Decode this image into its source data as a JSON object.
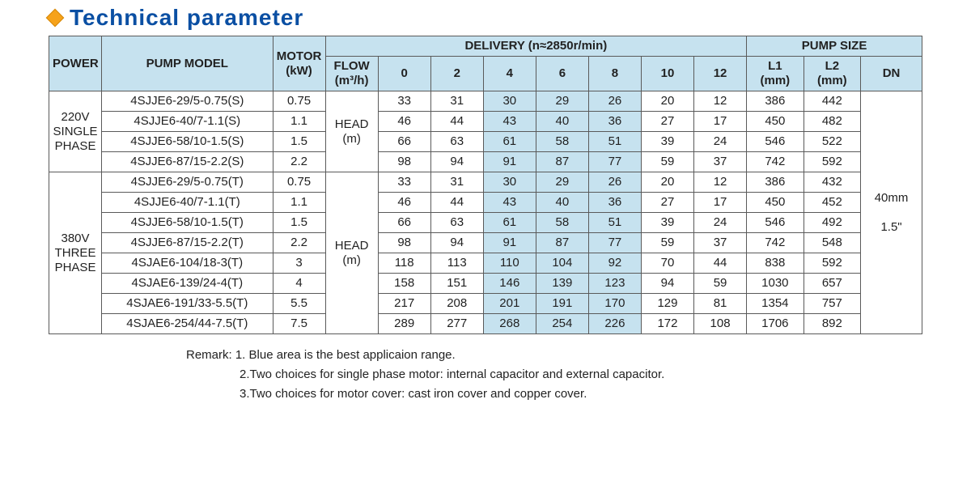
{
  "title": "Technical parameter",
  "headers": {
    "power": "POWER",
    "pump_model": "PUMP MODEL",
    "motor_kw": "MOTOR (kW)",
    "delivery": "DELIVERY  (n≈2850r/min)",
    "pump_size": "PUMP SIZE",
    "flow": "FLOW (m³/h)",
    "l1": "L1 (mm)",
    "l2": "L2 (mm)",
    "dn": "DN"
  },
  "flow_cols": [
    "0",
    "2",
    "4",
    "6",
    "8",
    "10",
    "12"
  ],
  "groups": [
    {
      "power_label": "220V\nSINGLE\nPHASE",
      "head_label": "HEAD\n(m)",
      "rows": [
        {
          "model": "4SJJE6-29/5-0.75(S)",
          "kw": "0.75",
          "head": [
            "33",
            "31",
            "30",
            "29",
            "26",
            "20",
            "12"
          ],
          "hl": [
            false,
            false,
            true,
            true,
            true,
            false,
            false
          ],
          "l1": "386",
          "l2": "442"
        },
        {
          "model": "4SJJE6-40/7-1.1(S)",
          "kw": "1.1",
          "head": [
            "46",
            "44",
            "43",
            "40",
            "36",
            "27",
            "17"
          ],
          "hl": [
            false,
            false,
            true,
            true,
            true,
            false,
            false
          ],
          "l1": "450",
          "l2": "482"
        },
        {
          "model": "4SJJE6-58/10-1.5(S)",
          "kw": "1.5",
          "head": [
            "66",
            "63",
            "61",
            "58",
            "51",
            "39",
            "24"
          ],
          "hl": [
            false,
            false,
            true,
            true,
            true,
            false,
            false
          ],
          "l1": "546",
          "l2": "522"
        },
        {
          "model": "4SJJE6-87/15-2.2(S)",
          "kw": "2.2",
          "head": [
            "98",
            "94",
            "91",
            "87",
            "77",
            "59",
            "37"
          ],
          "hl": [
            false,
            false,
            true,
            true,
            true,
            false,
            false
          ],
          "l1": "742",
          "l2": "592"
        }
      ]
    },
    {
      "power_label": "380V\nTHREE\nPHASE",
      "head_label": "HEAD\n(m)",
      "rows": [
        {
          "model": "4SJJE6-29/5-0.75(T)",
          "kw": "0.75",
          "head": [
            "33",
            "31",
            "30",
            "29",
            "26",
            "20",
            "12"
          ],
          "hl": [
            false,
            false,
            true,
            true,
            true,
            false,
            false
          ],
          "l1": "386",
          "l2": "432"
        },
        {
          "model": "4SJJE6-40/7-1.1(T)",
          "kw": "1.1",
          "head": [
            "46",
            "44",
            "43",
            "40",
            "36",
            "27",
            "17"
          ],
          "hl": [
            false,
            false,
            true,
            true,
            true,
            false,
            false
          ],
          "l1": "450",
          "l2": "452"
        },
        {
          "model": "4SJJE6-58/10-1.5(T)",
          "kw": "1.5",
          "head": [
            "66",
            "63",
            "61",
            "58",
            "51",
            "39",
            "24"
          ],
          "hl": [
            false,
            false,
            true,
            true,
            true,
            false,
            false
          ],
          "l1": "546",
          "l2": "492"
        },
        {
          "model": "4SJJE6-87/15-2.2(T)",
          "kw": "2.2",
          "head": [
            "98",
            "94",
            "91",
            "87",
            "77",
            "59",
            "37"
          ],
          "hl": [
            false,
            false,
            true,
            true,
            true,
            false,
            false
          ],
          "l1": "742",
          "l2": "548"
        },
        {
          "model": "4SJAE6-104/18-3(T)",
          "kw": "3",
          "head": [
            "118",
            "113",
            "110",
            "104",
            "92",
            "70",
            "44"
          ],
          "hl": [
            false,
            false,
            true,
            true,
            true,
            false,
            false
          ],
          "l1": "838",
          "l2": "592"
        },
        {
          "model": "4SJAE6-139/24-4(T)",
          "kw": "4",
          "head": [
            "158",
            "151",
            "146",
            "139",
            "123",
            "94",
            "59"
          ],
          "hl": [
            false,
            false,
            true,
            true,
            true,
            false,
            false
          ],
          "l1": "1030",
          "l2": "657"
        },
        {
          "model": "4SJAE6-191/33-5.5(T)",
          "kw": "5.5",
          "head": [
            "217",
            "208",
            "201",
            "191",
            "170",
            "129",
            "81"
          ],
          "hl": [
            false,
            false,
            true,
            true,
            true,
            false,
            false
          ],
          "l1": "1354",
          "l2": "757"
        },
        {
          "model": "4SJAE6-254/44-7.5(T)",
          "kw": "7.5",
          "head": [
            "289",
            "277",
            "268",
            "254",
            "226",
            "172",
            "108"
          ],
          "hl": [
            false,
            false,
            true,
            true,
            true,
            false,
            false
          ],
          "l1": "1706",
          "l2": "892"
        }
      ]
    }
  ],
  "dn": "40mm\n\n1.5\"",
  "remarks": [
    "Remark: 1. Blue area is the best applicaion range.",
    "2.Two choices for single phase motor: internal capacitor and external capacitor.",
    "3.Two choices for motor cover: cast iron cover and copper cover."
  ],
  "colwidths": {
    "power": 60,
    "model": 195,
    "kw": 60,
    "flow": 60,
    "head": 60,
    "l1": 65,
    "l2": 65,
    "dn": 70
  },
  "style": {
    "highlight_bg": "#c6e2ef",
    "border_color": "#5a5a5a",
    "title_color": "#0a4fa3",
    "diamond_color": "#f6a21a"
  }
}
